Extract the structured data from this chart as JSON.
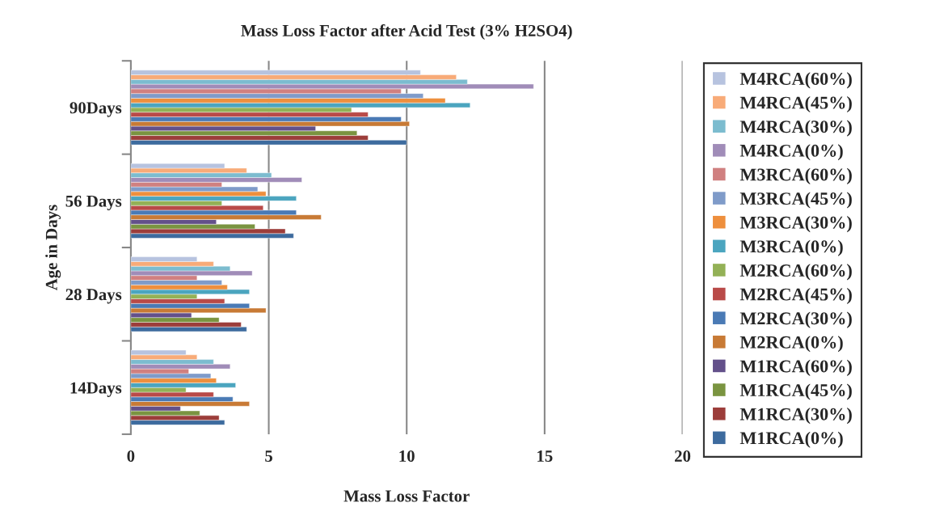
{
  "chart_data": {
    "type": "bar",
    "orientation": "horizontal",
    "title": "Mass Loss Factor after Acid Test (3% H2SO4)",
    "xlabel": "Mass Loss Factor",
    "ylabel": "Age in Days",
    "categories": [
      "90Days",
      "56 Days",
      "28 Days",
      "14Days"
    ],
    "xlim": [
      0,
      20
    ],
    "xticks": [
      0,
      5,
      10,
      15,
      20
    ],
    "grid": "x",
    "legend": "right",
    "series": [
      {
        "name": "M1RCA(0%)",
        "color": "#3d6b9e",
        "values": [
          10.0,
          5.9,
          4.2,
          3.4
        ]
      },
      {
        "name": "M1RCA(30%)",
        "color": "#9c3d3a",
        "values": [
          8.6,
          5.6,
          4.0,
          3.2
        ]
      },
      {
        "name": "M1RCA(45%)",
        "color": "#7a9440",
        "values": [
          8.2,
          4.5,
          3.2,
          2.5
        ]
      },
      {
        "name": "M1RCA(60%)",
        "color": "#63508a",
        "values": [
          6.7,
          3.1,
          2.2,
          1.8
        ]
      },
      {
        "name": "M2RCA(0%)",
        "color": "#c87a35",
        "values": [
          10.1,
          6.9,
          4.9,
          4.3
        ]
      },
      {
        "name": "M2RCA(30%)",
        "color": "#4a7ab5",
        "values": [
          9.8,
          6.0,
          4.3,
          3.7
        ]
      },
      {
        "name": "M2RCA(45%)",
        "color": "#b94a48",
        "values": [
          8.6,
          4.8,
          3.4,
          3.0
        ]
      },
      {
        "name": "M2RCA(60%)",
        "color": "#93b156",
        "values": [
          8.0,
          3.3,
          2.4,
          2.0
        ]
      },
      {
        "name": "M3RCA(0%)",
        "color": "#4ba5bf",
        "values": [
          12.3,
          6.0,
          4.3,
          3.8
        ]
      },
      {
        "name": "M3RCA(30%)",
        "color": "#ee8f3d",
        "values": [
          11.4,
          4.9,
          3.5,
          3.1
        ]
      },
      {
        "name": "M3RCA(45%)",
        "color": "#7f9bc9",
        "values": [
          10.6,
          4.6,
          3.3,
          2.9
        ]
      },
      {
        "name": "M3RCA(60%)",
        "color": "#d08080",
        "values": [
          9.8,
          3.3,
          2.4,
          2.1
        ]
      },
      {
        "name": "M4RCA(0%)",
        "color": "#a08cb8",
        "values": [
          14.6,
          6.2,
          4.4,
          3.6
        ]
      },
      {
        "name": "M4RCA(30%)",
        "color": "#7cbccf",
        "values": [
          12.2,
          5.1,
          3.6,
          3.0
        ]
      },
      {
        "name": "M4RCA(45%)",
        "color": "#f8ab78",
        "values": [
          11.8,
          4.2,
          3.0,
          2.4
        ]
      },
      {
        "name": "M4RCA(60%)",
        "color": "#b7c3df",
        "values": [
          10.5,
          3.4,
          2.4,
          2.0
        ]
      }
    ]
  }
}
